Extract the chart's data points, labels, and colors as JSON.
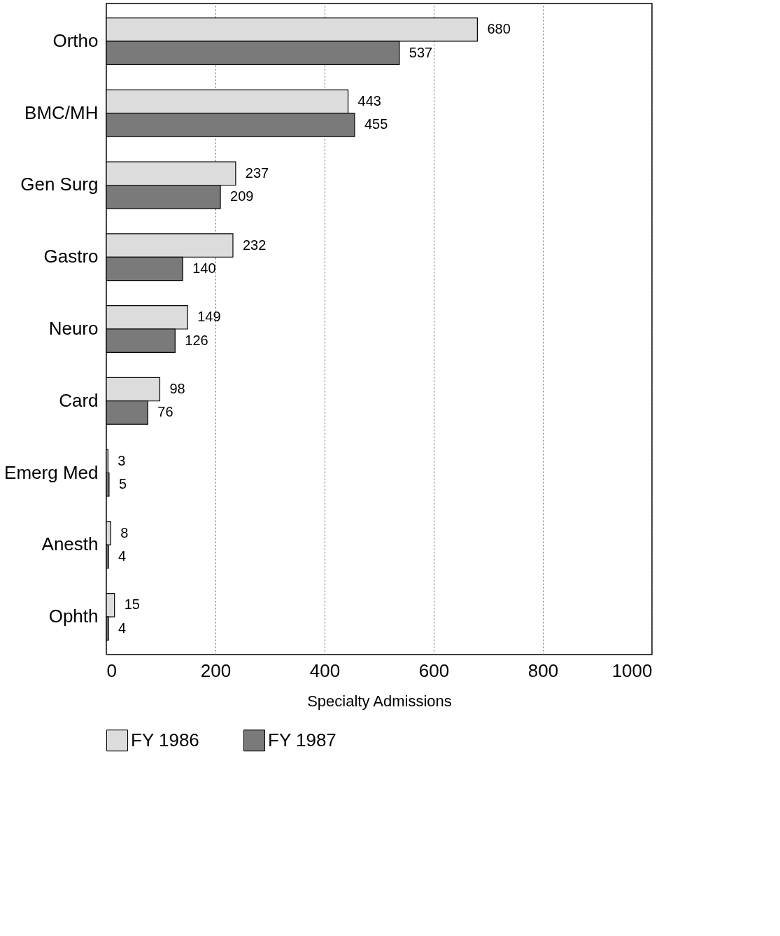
{
  "chart_data": {
    "type": "bar",
    "orientation": "horizontal",
    "xlabel": "Specialty Admissions",
    "categories": [
      "Ortho",
      "BMC/MH",
      "Gen Surg",
      "Gastro",
      "Neuro",
      "Card",
      "Emerg Med",
      "Anesth",
      "Ophth"
    ],
    "series": [
      {
        "name": "FY 1986",
        "color": "#dcdcdc",
        "values": [
          680,
          443,
          237,
          232,
          149,
          98,
          3,
          8,
          15
        ]
      },
      {
        "name": "FY 1987",
        "color": "#7a7a7a",
        "values": [
          537,
          455,
          209,
          140,
          126,
          76,
          5,
          4,
          4
        ]
      }
    ],
    "xlim": [
      0,
      1000
    ],
    "xticks": [
      0,
      200,
      400,
      600,
      800,
      1000
    ],
    "grid": "x",
    "legend": "bottom",
    "data_labels": true
  }
}
